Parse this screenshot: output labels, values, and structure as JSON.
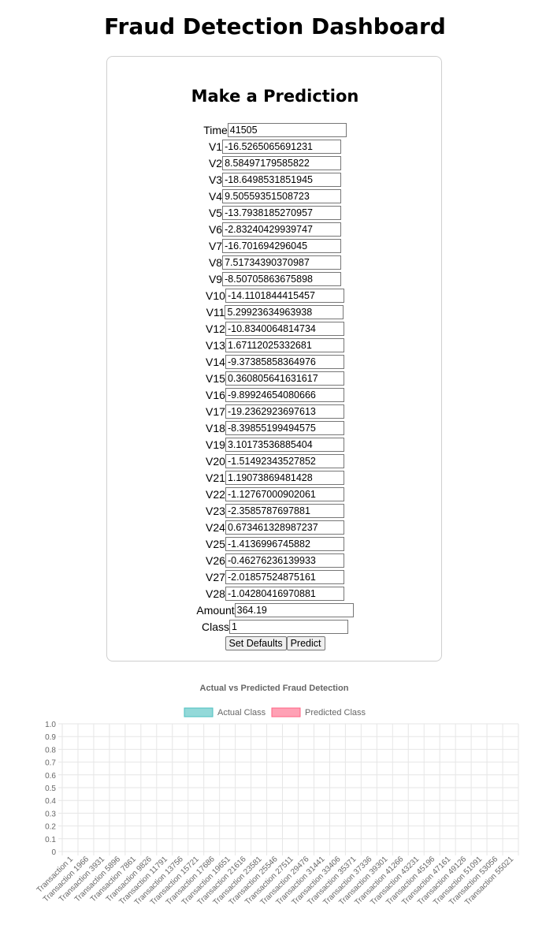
{
  "page": {
    "title": "Fraud Detection Dashboard"
  },
  "form": {
    "title": "Make a Prediction",
    "fields": [
      {
        "label": "Time",
        "value": "41505"
      },
      {
        "label": "V1",
        "value": "-16.5265065691231"
      },
      {
        "label": "V2",
        "value": "8.58497179585822"
      },
      {
        "label": "V3",
        "value": "-18.6498531851945"
      },
      {
        "label": "V4",
        "value": "9.50559351508723"
      },
      {
        "label": "V5",
        "value": "-13.7938185270957"
      },
      {
        "label": "V6",
        "value": "-2.83240429939747"
      },
      {
        "label": "V7",
        "value": "-16.701694296045"
      },
      {
        "label": "V8",
        "value": "7.51734390370987"
      },
      {
        "label": "V9",
        "value": "-8.50705863675898"
      },
      {
        "label": "V10",
        "value": "-14.1101844415457"
      },
      {
        "label": "V11",
        "value": "5.29923634963938"
      },
      {
        "label": "V12",
        "value": "-10.8340064814734"
      },
      {
        "label": "V13",
        "value": "1.67112025332681"
      },
      {
        "label": "V14",
        "value": "-9.37385858364976"
      },
      {
        "label": "V15",
        "value": "0.360805641631617"
      },
      {
        "label": "V16",
        "value": "-9.89924654080666"
      },
      {
        "label": "V17",
        "value": "-19.2362923697613"
      },
      {
        "label": "V18",
        "value": "-8.39855199494575"
      },
      {
        "label": "V19",
        "value": "3.10173536885404"
      },
      {
        "label": "V20",
        "value": "-1.51492343527852"
      },
      {
        "label": "V21",
        "value": "1.19073869481428"
      },
      {
        "label": "V22",
        "value": "-1.12767000902061"
      },
      {
        "label": "V23",
        "value": "-2.3585787697881"
      },
      {
        "label": "V24",
        "value": "0.673461328987237"
      },
      {
        "label": "V25",
        "value": "-1.4136996745882"
      },
      {
        "label": "V26",
        "value": "-0.46276236139933"
      },
      {
        "label": "V27",
        "value": "-2.01857524875161"
      },
      {
        "label": "V28",
        "value": "-1.04280416970881"
      },
      {
        "label": "Amount",
        "value": "364.19"
      },
      {
        "label": "Class",
        "value": "1"
      }
    ],
    "buttons": {
      "set_defaults": "Set Defaults",
      "predict": "Predict"
    }
  },
  "colors": {
    "actual": "#4bc0c0",
    "predicted": "#ff6384",
    "grid": "#e6e6e6",
    "tick_text": "#666666",
    "card_border": "#cfcfcf"
  },
  "chart_data": {
    "type": "bar",
    "title": "Actual vs Predicted Fraud Detection",
    "xlabel": "",
    "ylabel": "",
    "ylim": [
      0,
      1.0
    ],
    "yticks": [
      "1.0",
      "0.9",
      "0.8",
      "0.7",
      "0.6",
      "0.5",
      "0.4",
      "0.3",
      "0.2",
      "0.1",
      "0"
    ],
    "legend_position": "top",
    "grid": true,
    "categories": [
      "Transaction 1",
      "Transaction 1966",
      "Transaction 3931",
      "Transaction 5896",
      "Transaction 7861",
      "Transaction 9826",
      "Transaction 11791",
      "Transaction 13756",
      "Transaction 15721",
      "Transaction 17686",
      "Transaction 19651",
      "Transaction 21616",
      "Transaction 23581",
      "Transaction 25546",
      "Transaction 27511",
      "Transaction 29476",
      "Transaction 31441",
      "Transaction 33406",
      "Transaction 35371",
      "Transaction 37336",
      "Transaction 39301",
      "Transaction 41266",
      "Transaction 43231",
      "Transaction 45196",
      "Transaction 47161",
      "Transaction 49126",
      "Transaction 51091",
      "Transaction 53056",
      "Transaction 55021"
    ],
    "series": [
      {
        "name": "Actual Class",
        "values": [
          0,
          0,
          0,
          0,
          0,
          0,
          0,
          0,
          0,
          0,
          0,
          0,
          0,
          0,
          0,
          0,
          0,
          0,
          0,
          0,
          0,
          0,
          0,
          0,
          0,
          0,
          0,
          0,
          0
        ]
      },
      {
        "name": "Predicted Class",
        "values": [
          0,
          0,
          0,
          0,
          0,
          0,
          0,
          0,
          0,
          0,
          0,
          0,
          0,
          0,
          0,
          0,
          0,
          0,
          0,
          0,
          0,
          0,
          0,
          0,
          0,
          0,
          0,
          0,
          0
        ]
      }
    ]
  }
}
